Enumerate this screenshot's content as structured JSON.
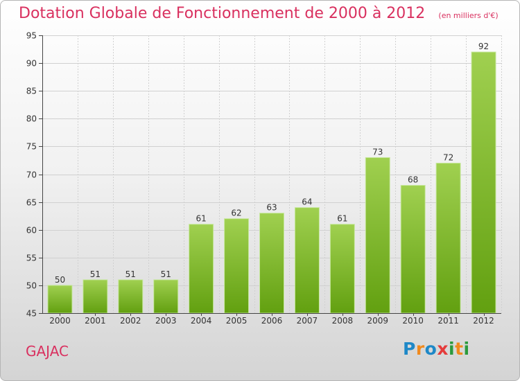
{
  "title": "Dotation Globale de Fonctionnement de 2000 à 2012",
  "subtitle": "(en milliers d'€)",
  "place": "GAJAC",
  "brand": {
    "letters": [
      "P",
      "r",
      "o",
      "x",
      "i",
      "t",
      "i"
    ],
    "colors": [
      "#1e88c7",
      "#f08a1d",
      "#1e88c7",
      "#e53b3b",
      "#2b9a3c",
      "#f08a1d",
      "#2b9a3c"
    ]
  },
  "colors": {
    "title": "#d9305f",
    "bar_light": "#a0d050",
    "bar_dark": "#62a010",
    "grid": "#d0d0d0",
    "axis": "#444444"
  },
  "chart_data": {
    "type": "bar",
    "title": "Dotation Globale de Fonctionnement de 2000 à 2012",
    "subtitle": "(en milliers d'€)",
    "categories": [
      "2000",
      "2001",
      "2002",
      "2003",
      "2004",
      "2005",
      "2006",
      "2007",
      "2008",
      "2009",
      "2010",
      "2011",
      "2012"
    ],
    "values": [
      50,
      51,
      51,
      51,
      61,
      62,
      63,
      64,
      61,
      73,
      68,
      72,
      92
    ],
    "ylim": [
      45,
      95
    ],
    "yticks": [
      45,
      50,
      55,
      60,
      65,
      70,
      75,
      80,
      85,
      90,
      95
    ],
    "grid": true,
    "xlabel": "",
    "ylabel": ""
  }
}
